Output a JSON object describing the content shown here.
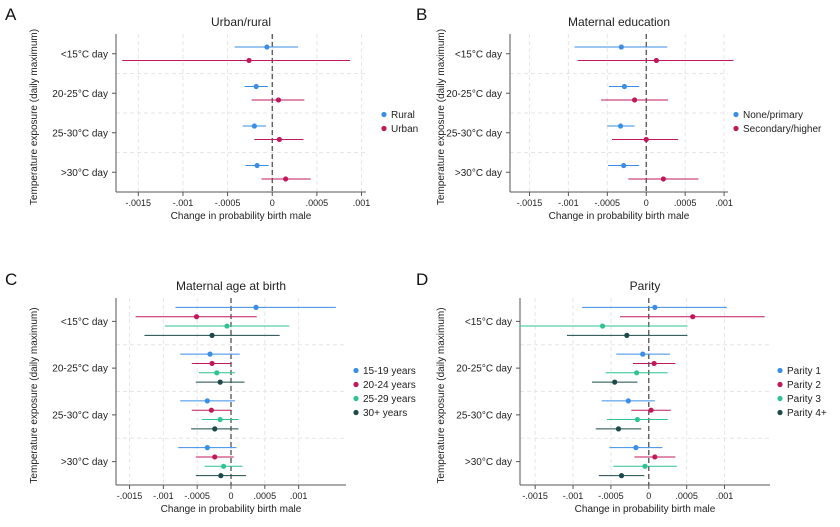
{
  "colors": {
    "blue": "#3a8ee6",
    "pink": "#c2185b",
    "green": "#2ec492",
    "dark": "#1c4a4a",
    "grid": "#e6e6e6",
    "axis": "#555555"
  },
  "chart_data": [
    {
      "type": "scatter",
      "panel": "A",
      "title": "Urban/rural",
      "xlabel": "Change in probability birth male",
      "ylabel": "Temperature exposure (daily maximum)",
      "categories": [
        "<15°C day",
        "20-25°C day",
        "25-30°C day",
        ">30°C day"
      ],
      "xlim": [
        -0.00175,
        0.00105
      ],
      "xticks": [
        -0.0015,
        -0.001,
        -0.0005,
        0,
        0.0005,
        0.001
      ],
      "xtick_labels": [
        "-.0015",
        "-.001",
        "-.0005",
        "0",
        ".0005",
        ".001"
      ],
      "series": [
        {
          "name": "Rural",
          "color": "blue",
          "estimates": [
            -6e-05,
            -0.00018,
            -0.0002,
            -0.00017
          ],
          "ci_low": [
            -0.00042,
            -0.00031,
            -0.00033,
            -0.0003
          ],
          "ci_high": [
            0.00029,
            -5e-05,
            -7e-05,
            -4e-05
          ]
        },
        {
          "name": "Urban",
          "color": "pink",
          "estimates": [
            -0.00026,
            7e-05,
            8e-05,
            0.00015
          ],
          "ci_low": [
            -0.00168,
            -0.00023,
            -0.0002,
            -0.00012
          ],
          "ci_high": [
            0.00087,
            0.00036,
            0.00035,
            0.00043
          ]
        }
      ]
    },
    {
      "type": "scatter",
      "panel": "B",
      "title": "Maternal education",
      "xlabel": "Change in probability birth male",
      "ylabel": "Temperature exposure (daily maximum)",
      "categories": [
        "<15°C day",
        "20-25°C day",
        "25-30°C day",
        ">30°C day"
      ],
      "xlim": [
        -0.00175,
        0.00105
      ],
      "xticks": [
        -0.0015,
        -0.001,
        -0.0005,
        0,
        0.0005,
        0.001
      ],
      "xtick_labels": [
        "-.0015",
        "-.001",
        "-.0005",
        "0",
        ".0005",
        ".001"
      ],
      "series": [
        {
          "name": "None/primary",
          "color": "blue",
          "estimates": [
            -0.00032,
            -0.00028,
            -0.00033,
            -0.00029
          ],
          "ci_low": [
            -0.00092,
            -0.00048,
            -0.0005,
            -0.00049
          ],
          "ci_high": [
            0.00027,
            -9e-05,
            -0.00015,
            -9e-05
          ]
        },
        {
          "name": "Secondary/higher",
          "color": "pink",
          "estimates": [
            0.00013,
            -0.00015,
            0.0,
            0.00022
          ],
          "ci_low": [
            -0.00088,
            -0.00058,
            -0.00044,
            -0.00023
          ],
          "ci_high": [
            0.00112,
            0.00028,
            0.00041,
            0.00067
          ]
        }
      ]
    },
    {
      "type": "scatter",
      "panel": "C",
      "title": "Maternal age at birth",
      "xlabel": "Change in probability birth male",
      "ylabel": "Temperature exposure (daily maximum)",
      "categories": [
        "<15°C day",
        "20-25°C day",
        "25-30°C day",
        ">30°C day"
      ],
      "xlim": [
        -0.0017,
        0.0017
      ],
      "xticks": [
        -0.0015,
        -0.001,
        -0.0005,
        0,
        0.0005,
        0.001
      ],
      "xtick_labels": [
        "-.0015",
        "-.001",
        "-.0005",
        "0",
        ".0005",
        ".001"
      ],
      "series": [
        {
          "name": "15-19 years",
          "color": "blue",
          "estimates": [
            0.00037,
            -0.00031,
            -0.00035,
            -0.00035
          ],
          "ci_low": [
            -0.00082,
            -0.00075,
            -0.00075,
            -0.00078
          ],
          "ci_high": [
            0.00155,
            0.00013,
            6e-05,
            8e-05
          ]
        },
        {
          "name": "20-24 years",
          "color": "pink",
          "estimates": [
            -0.00051,
            -0.00028,
            -0.00029,
            -0.00024
          ],
          "ci_low": [
            -0.00141,
            -0.00058,
            -0.00058,
            -0.00052
          ],
          "ci_high": [
            0.00038,
            1e-05,
            1e-05,
            4e-05
          ]
        },
        {
          "name": "25-29 years",
          "color": "green",
          "estimates": [
            -6e-05,
            -0.00021,
            -0.00016,
            -0.00011
          ],
          "ci_low": [
            -0.00098,
            -0.00048,
            -0.00043,
            -0.00039
          ],
          "ci_high": [
            0.00086,
            6e-05,
            0.00011,
            0.00017
          ]
        },
        {
          "name": "30+ years",
          "color": "dark",
          "estimates": [
            -0.00028,
            -0.00016,
            -0.00024,
            -0.00015
          ],
          "ci_low": [
            -0.00128,
            -0.00052,
            -0.00059,
            -0.00052
          ],
          "ci_high": [
            0.00072,
            0.0002,
            0.00011,
            0.00022
          ]
        }
      ]
    },
    {
      "type": "scatter",
      "panel": "D",
      "title": "Parity",
      "xlabel": "Change in probability birth male",
      "ylabel": "Temperature exposure (daily maximum)",
      "categories": [
        "<15°C day",
        "20-25°C day",
        "25-30°C day",
        ">30°C day"
      ],
      "xlim": [
        -0.0017,
        0.0016
      ],
      "xticks": [
        -0.0015,
        -0.001,
        -0.0005,
        0,
        0.0005,
        0.001
      ],
      "xtick_labels": [
        "-.0015",
        "-.001",
        "-.0005",
        "0",
        ".0005",
        ".001"
      ],
      "series": [
        {
          "name": "Parity 1",
          "color": "blue",
          "estimates": [
            8e-05,
            -8e-05,
            -0.00027,
            -0.00017
          ],
          "ci_low": [
            -0.00088,
            -0.00043,
            -0.00062,
            -0.00052
          ],
          "ci_high": [
            0.00103,
            0.00028,
            8e-05,
            0.00018
          ]
        },
        {
          "name": "Parity 2",
          "color": "pink",
          "estimates": [
            0.00058,
            7e-05,
            3e-05,
            8e-05
          ],
          "ci_low": [
            -0.00038,
            -0.00021,
            -0.00023,
            -0.00019
          ],
          "ci_high": [
            0.00153,
            0.00035,
            0.00029,
            0.00035
          ]
        },
        {
          "name": "Parity 3",
          "color": "green",
          "estimates": [
            -0.00061,
            -0.00016,
            -0.00015,
            -5e-05
          ],
          "ci_low": [
            -0.00171,
            -0.00057,
            -0.00055,
            -0.00047
          ],
          "ci_high": [
            0.00051,
            0.00025,
            0.00025,
            0.00037
          ]
        },
        {
          "name": "Parity 4+",
          "color": "dark",
          "estimates": [
            -0.00029,
            -0.00045,
            -0.0004,
            -0.00036
          ],
          "ci_low": [
            -0.00108,
            -0.00075,
            -0.0007,
            -0.00066
          ],
          "ci_high": [
            0.00051,
            -0.00015,
            -0.0001,
            -6e-05
          ]
        }
      ]
    }
  ]
}
